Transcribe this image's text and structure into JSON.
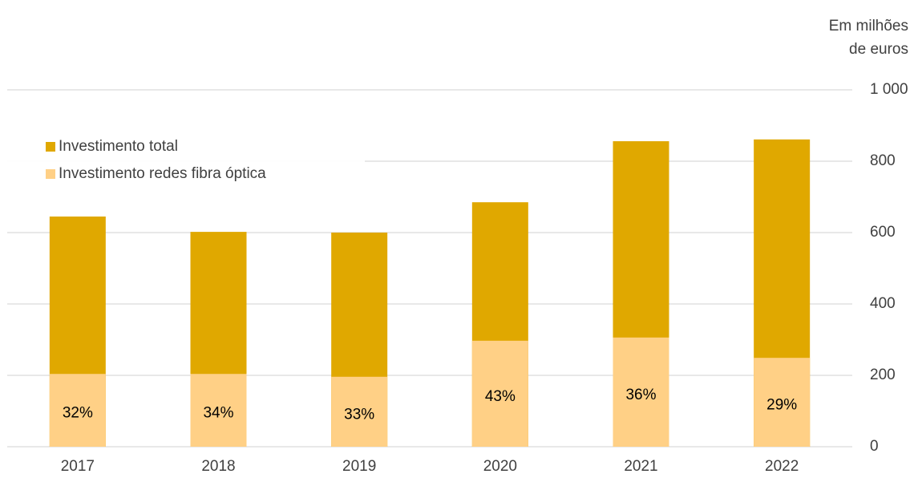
{
  "chart_data": {
    "type": "bar",
    "y_label": [
      "Em milhões",
      "de euros"
    ],
    "categories": [
      "2017",
      "2018",
      "2019",
      "2020",
      "2021",
      "2022"
    ],
    "series": [
      {
        "name": "Investimento total",
        "color": "#e0a800",
        "values": [
          645,
          602,
          600,
          685,
          856,
          861
        ]
      },
      {
        "name": "Investimento redes fibra óptica",
        "color": "#ffd086",
        "values": [
          204,
          204,
          196,
          297,
          306,
          249
        ],
        "share_labels": [
          "32%",
          "34%",
          "33%",
          "43%",
          "36%",
          "29%"
        ]
      }
    ],
    "ylim": [
      0,
      1000
    ],
    "yticks": [
      0,
      200,
      400,
      600,
      800,
      {
        "value": 1000,
        "label": "1 000"
      }
    ],
    "grid": true,
    "legend": "upper left"
  }
}
